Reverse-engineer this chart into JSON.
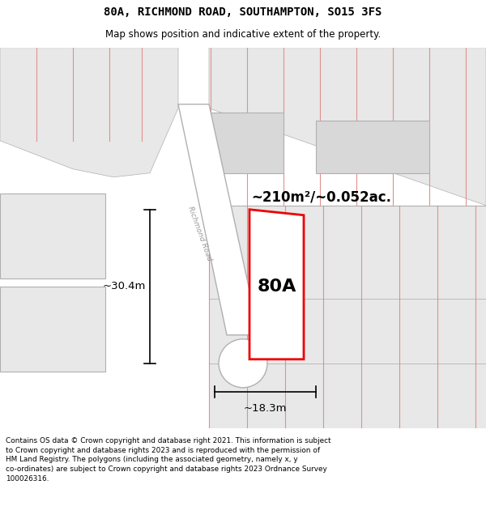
{
  "title": "80A, RICHMOND ROAD, SOUTHAMPTON, SO15 3FS",
  "subtitle": "Map shows position and indicative extent of the property.",
  "footer": "Contains OS data © Crown copyright and database right 2021. This information is subject\nto Crown copyright and database rights 2023 and is reproduced with the permission of\nHM Land Registry. The polygons (including the associated geometry, namely x, y\nco-ordinates) are subject to Crown copyright and database rights 2023 Ordnance Survey\n100026316.",
  "area_label": "~210m²/~0.052ac.",
  "property_label": "80A",
  "width_label": "~18.3m",
  "height_label": "~30.4m",
  "road_label": "Richmond Road",
  "red_color": "#ee0000",
  "gray_fill": "#d8d8d8",
  "light_gray_fill": "#e8e8e8",
  "pink_line": "#e09090",
  "dark_line": "#b0b0b0",
  "road_edge": "#aaaaaa",
  "white": "#ffffff"
}
